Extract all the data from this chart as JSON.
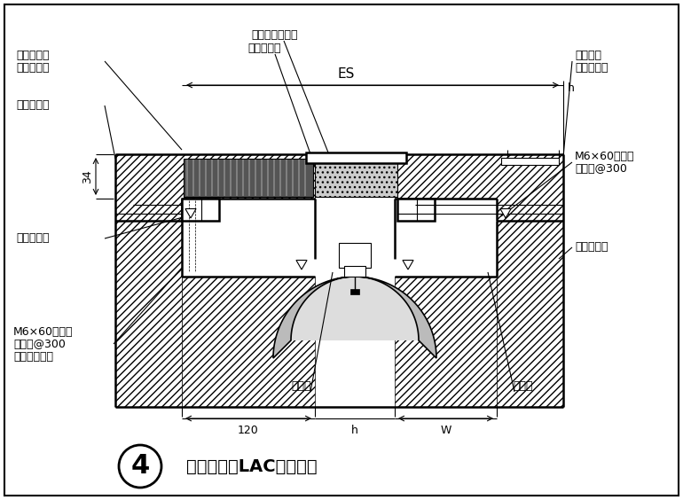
{
  "title": "楼、地面（LAC）转角型",
  "title_number": "4",
  "bg_color": "#ffffff",
  "line_color": "#000000",
  "labels": {
    "top_left1": "楼地面做法",
    "top_left2": "按工程设计",
    "left1": "楼地面标高",
    "left2": "34",
    "left3": "铝合金基座",
    "top_center1": "铝合金中心盖板",
    "top_center2": "弹性橡胶条",
    "top_dim": "ES",
    "top_dim_h": "h",
    "right1": "面层材料",
    "right2": "按工程设计",
    "right3": "M6×60金属膨",
    "right4": "锚螺栓@300",
    "right5": "不锈钢滑杆",
    "bottom_left1": "M6×60金属膨",
    "bottom_left2": "锚螺栓@300",
    "bottom_left3": "（交错布置）",
    "bottom_center1": "阻火带",
    "bottom_center2": "止水带",
    "bottom_dim1": "120",
    "bottom_dim2": "h",
    "bottom_dim3": "W"
  }
}
